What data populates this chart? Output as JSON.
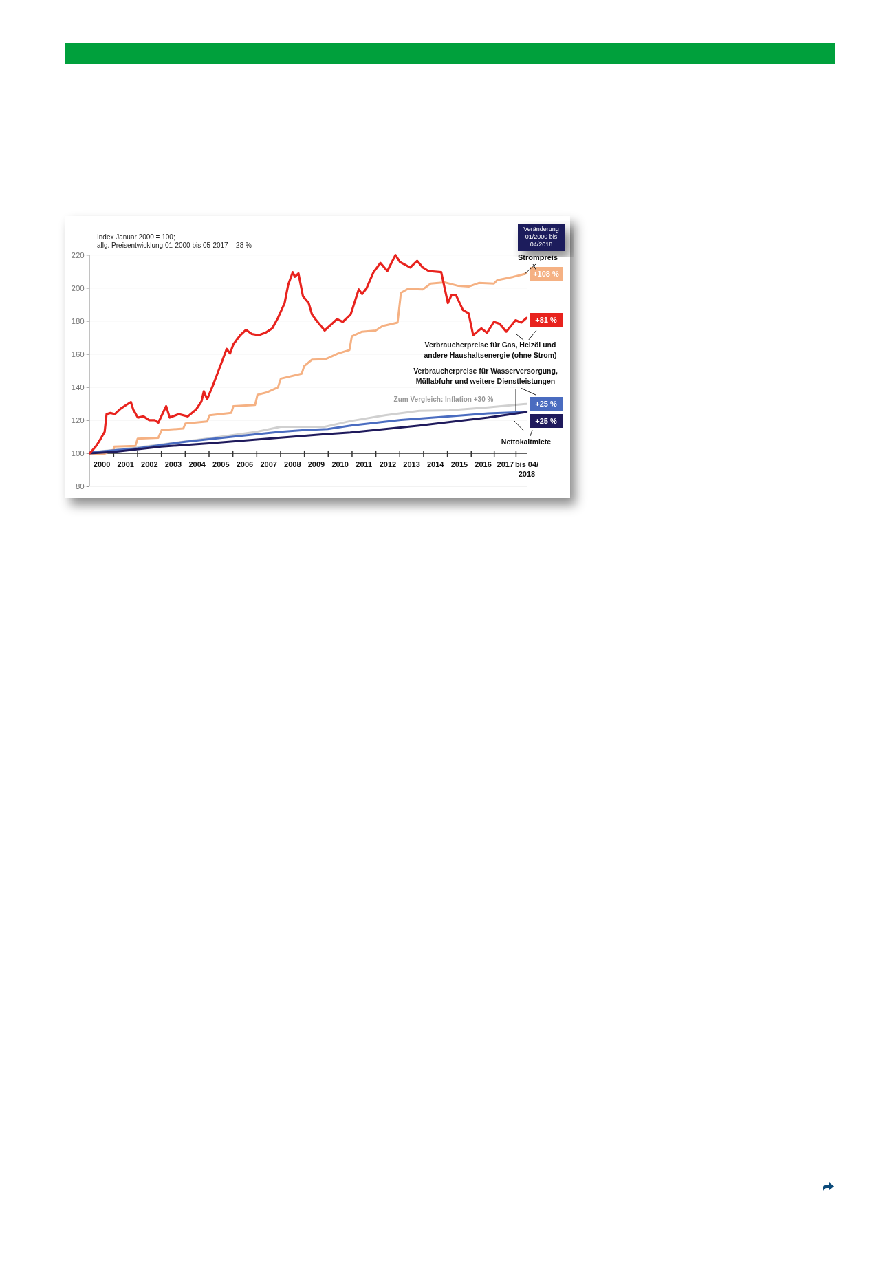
{
  "chart_data": {
    "type": "line",
    "annotations": [
      "Index  Januar 2000 = 100;",
      "allg. Preisentwicklung 01-2000 bis 05-2017 = 28 %",
      "Veränderung 01/2000 bis 04/2018",
      "+108 %",
      "+81 %",
      "+25 %",
      "+25 %"
    ],
    "series": [
      {
        "name": "Strompreis",
        "color": "#f5b183",
        "x": [
          2000,
          2000.57,
          2001.0,
          2001.02,
          2001.91,
          2002.0,
          2002.87,
          2003.01,
          2003.92,
          2004.01,
          2004.92,
          2005.02,
          2005.93,
          2006.02,
          2006.93,
          2007.03,
          2007.41,
          2007.89,
          2008.01,
          2008.89,
          2008.99,
          2009.32,
          2009.85,
          2009.98,
          2010.41,
          2010.89,
          2010.99,
          2011.42,
          2011.99,
          2012.28,
          2012.91,
          2013.05,
          2013.34,
          2013.97,
          2014.3,
          2014.88,
          2015.46,
          2015.89,
          2016.32,
          2016.95,
          2017.09,
          2017.76,
          2018.05,
          2018.32
        ],
        "values": [
          100,
          99.4,
          102.2,
          104,
          104.5,
          108.8,
          109.4,
          114,
          115,
          118,
          119.2,
          123,
          124.4,
          128.5,
          129.2,
          135.4,
          136.8,
          139.9,
          145.2,
          148.2,
          152.8,
          156.7,
          156.9,
          157.6,
          160.4,
          162.5,
          170.8,
          173.6,
          174.3,
          177,
          179.1,
          197.1,
          199.5,
          199.2,
          202.7,
          203.4,
          201.3,
          200.9,
          203.1,
          202.7,
          204.8,
          206.8,
          207.8,
          208.9
        ]
      },
      {
        "name": "Verbraucherpreise für Gas, Heizöl und andere Haushaltsenergie (ohne Strom)",
        "color": "#e8231e",
        "x": [
          2000,
          2000.24,
          2000.38,
          2000.62,
          2000.7,
          2000.86,
          2001.05,
          2001.29,
          2001.48,
          2001.72,
          2001.82,
          2002.01,
          2002.25,
          2002.49,
          2002.72,
          2002.87,
          2003.2,
          2003.35,
          2003.73,
          2004.11,
          2004.45,
          2004.68,
          2004.78,
          2004.92,
          2005.16,
          2005.45,
          2005.74,
          2005.88,
          2006.02,
          2006.31,
          2006.55,
          2006.79,
          2007.08,
          2007.36,
          2007.65,
          2007.89,
          2008.17,
          2008.32,
          2008.51,
          2008.6,
          2008.75,
          2008.94,
          2009.18,
          2009.32,
          2009.46,
          2009.85,
          2010.37,
          2010.61,
          2010.94,
          2011.28,
          2011.42,
          2011.61,
          2011.9,
          2012.19,
          2012.48,
          2012.82,
          2013.01,
          2013.44,
          2013.73,
          2013.97,
          2014.21,
          2014.74,
          2015.02,
          2015.17,
          2015.36,
          2015.65,
          2015.89,
          2016.08,
          2016.42,
          2016.66,
          2016.95,
          2017.19,
          2017.47,
          2017.86,
          2018.1,
          2018.32
        ],
        "values": [
          100.1,
          104,
          107,
          113,
          123.7,
          124.4,
          123.7,
          127,
          128.8,
          131,
          126.4,
          121.6,
          122.3,
          120,
          120,
          118.5,
          128.5,
          121.6,
          123.7,
          122.3,
          126.4,
          131.3,
          137.5,
          132.7,
          141,
          152,
          163.2,
          160.4,
          166,
          171.5,
          174.7,
          172.2,
          171.5,
          172.9,
          175.6,
          181.9,
          190.9,
          202,
          209.6,
          206.8,
          208.9,
          195,
          190.9,
          184,
          181.2,
          174.3,
          181.2,
          179.5,
          184,
          199.2,
          196.4,
          199.9,
          209.6,
          215.2,
          210.3,
          220,
          215.8,
          212.4,
          216.5,
          212.4,
          210.3,
          209.6,
          190.9,
          195.7,
          195.7,
          186.7,
          184.6,
          171.5,
          175.6,
          172.9,
          179.5,
          178.4,
          173.6,
          180.5,
          179.1,
          181.9
        ]
      },
      {
        "name": "Verbraucherpreise für  Wasserversorgung, Müllabfuhr und weitere Dienstleistungen",
        "color": "#4a6cc0",
        "x": [
          2000,
          2002,
          2004,
          2005,
          2007,
          2008,
          2009,
          2009.98,
          2010.94,
          2013.05,
          2015.02,
          2016.7,
          2018.32
        ],
        "values": [
          100.5,
          103,
          107,
          108.5,
          111.5,
          113,
          114,
          114.7,
          116.7,
          120.2,
          122.3,
          124.1,
          125
        ]
      },
      {
        "name": "Nettokaltmiete",
        "color": "#1f1a5c",
        "x": [
          2000,
          2001,
          2003,
          2005,
          2008,
          2009.85,
          2010.94,
          2013.82,
          2016.7,
          2018.32
        ],
        "values": [
          100,
          100.8,
          104,
          106,
          109.5,
          111.5,
          112.6,
          116.7,
          121.6,
          125
        ]
      },
      {
        "name": "Zum Vergleich: Inflation +30 %",
        "color": "#d0d0d0",
        "x": [
          2000,
          2002,
          2005,
          2007,
          2008,
          2009.85,
          2010.94,
          2012.38,
          2013.82,
          2015.07,
          2016.7,
          2018.32
        ],
        "values": [
          100.5,
          103.5,
          109,
          113,
          116,
          116,
          119.5,
          123,
          125.7,
          126,
          127.8,
          129.9
        ]
      }
    ],
    "xlim": [
      2000,
      2018.33
    ],
    "xticks": [
      {
        "value": 2000.5,
        "label": "2000"
      },
      {
        "value": 2001.5,
        "label": "2001"
      },
      {
        "value": 2002.5,
        "label": "2002"
      },
      {
        "value": 2003.5,
        "label": "2003"
      },
      {
        "value": 2004.5,
        "label": "2004"
      },
      {
        "value": 2005.5,
        "label": "2005"
      },
      {
        "value": 2006.5,
        "label": "2006"
      },
      {
        "value": 2007.5,
        "label": "2007"
      },
      {
        "value": 2008.5,
        "label": "2008"
      },
      {
        "value": 2009.5,
        "label": "2009"
      },
      {
        "value": 2010.5,
        "label": "2010"
      },
      {
        "value": 2011.5,
        "label": "2011"
      },
      {
        "value": 2012.5,
        "label": "2012"
      },
      {
        "value": 2013.5,
        "label": "2013"
      },
      {
        "value": 2014.5,
        "label": "2014"
      },
      {
        "value": 2015.5,
        "label": "2015"
      },
      {
        "value": 2016.5,
        "label": "2016"
      },
      {
        "value": 2017.43,
        "label": "2017"
      },
      {
        "value": 2018.33,
        "label": "bis 04/2018"
      }
    ],
    "ylim": [
      80,
      220
    ],
    "yticks": [
      80,
      100,
      120,
      140,
      160,
      180,
      200,
      220
    ],
    "grid": "y",
    "line_style": "solid"
  }
}
